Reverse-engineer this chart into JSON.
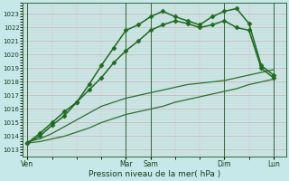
{
  "xlabel": "Pression niveau de la mer( hPa )",
  "background_color": "#c6e8e8",
  "grid_color_major": "#d8a8a8",
  "grid_color_minor": "#e0c0c0",
  "ylim": [
    1012.5,
    1023.8
  ],
  "yticks": [
    1013,
    1014,
    1015,
    1016,
    1017,
    1018,
    1019,
    1020,
    1021,
    1022,
    1023
  ],
  "xtick_labels": [
    "Ven",
    "",
    "Mar",
    "Sam",
    "",
    "Dim",
    "",
    "Lun"
  ],
  "vline_positions": [
    0,
    4,
    5,
    8,
    10
  ],
  "vline_color": "#336633",
  "xlim": [
    -0.2,
    10.5
  ],
  "series": [
    {
      "x": [
        0,
        0.5,
        1,
        1.5,
        2,
        2.5,
        3,
        3.5,
        4,
        4.5,
        5,
        5.5,
        6,
        6.5,
        7,
        7.5,
        8,
        8.5,
        9,
        9.5,
        10
      ],
      "y": [
        1013.5,
        1013.6,
        1013.8,
        1014.0,
        1014.3,
        1014.6,
        1015.0,
        1015.3,
        1015.6,
        1015.8,
        1016.0,
        1016.2,
        1016.5,
        1016.7,
        1016.9,
        1017.1,
        1017.3,
        1017.5,
        1017.8,
        1018.0,
        1018.2
      ],
      "color": "#2d6e2d",
      "lw": 0.9,
      "marker": null,
      "linestyle": "-"
    },
    {
      "x": [
        0,
        0.5,
        1,
        1.5,
        2,
        2.5,
        3,
        3.5,
        4,
        4.5,
        5,
        5.5,
        6,
        6.5,
        7,
        7.5,
        8,
        8.5,
        9,
        9.5,
        10
      ],
      "y": [
        1013.6,
        1013.8,
        1014.2,
        1014.7,
        1015.2,
        1015.7,
        1016.2,
        1016.5,
        1016.8,
        1017.0,
        1017.2,
        1017.4,
        1017.6,
        1017.8,
        1017.9,
        1018.0,
        1018.1,
        1018.3,
        1018.5,
        1018.7,
        1018.9
      ],
      "color": "#2d6e2d",
      "lw": 0.9,
      "marker": null,
      "linestyle": "-"
    },
    {
      "x": [
        0,
        0.5,
        1,
        1.5,
        2,
        2.5,
        3,
        3.5,
        4,
        4.5,
        5,
        5.5,
        6,
        6.5,
        7,
        7.5,
        8,
        8.5,
        9,
        9.5,
        10
      ],
      "y": [
        1013.5,
        1014.2,
        1015.0,
        1015.8,
        1016.5,
        1017.4,
        1018.3,
        1019.4,
        1020.3,
        1021.0,
        1021.8,
        1022.2,
        1022.5,
        1022.3,
        1022.0,
        1022.2,
        1022.5,
        1022.0,
        1021.8,
        1019.0,
        1018.3
      ],
      "color": "#1f6b1f",
      "lw": 1.1,
      "marker": "D",
      "markersize": 2.5,
      "linestyle": "-"
    },
    {
      "x": [
        0,
        0.5,
        1,
        1.5,
        2,
        2.5,
        3,
        3.5,
        4,
        4.5,
        5,
        5.5,
        6,
        6.5,
        7,
        7.5,
        8,
        8.5,
        9,
        9.5,
        10
      ],
      "y": [
        1013.5,
        1014.0,
        1014.8,
        1015.5,
        1016.5,
        1017.8,
        1019.2,
        1020.5,
        1021.8,
        1022.2,
        1022.8,
        1023.2,
        1022.8,
        1022.5,
        1022.2,
        1022.8,
        1023.2,
        1023.4,
        1022.3,
        1019.2,
        1018.5
      ],
      "color": "#1f6b1f",
      "lw": 1.1,
      "marker": "D",
      "markersize": 2.5,
      "linestyle": "-"
    }
  ]
}
